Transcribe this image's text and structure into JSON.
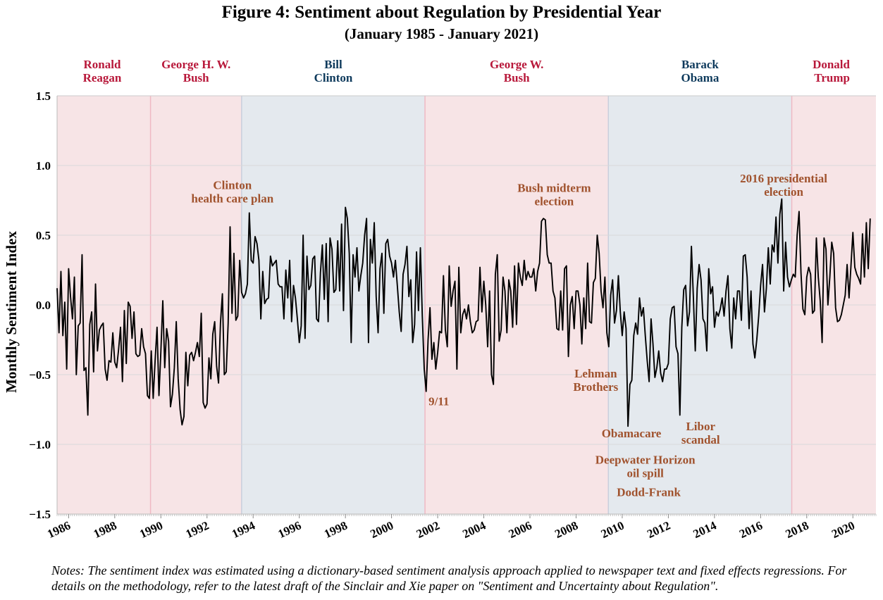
{
  "title": "Figure 4: Sentiment about Regulation by Presidential Year",
  "subtitle": "(January 1985 - January 2021)",
  "note": "Notes: The sentiment index was estimated using a dictionary-based sentiment analysis approach applied to newspaper text and fixed effects regressions. For details on the methodology, refer to the latest draft of the Sinclair and Xie paper on \"Sentiment and Uncertainty about Regulation\".",
  "colors": {
    "republican_band": "#f7e4e6",
    "democrat_band": "#e4e9ee",
    "republican_text": "#b8183a",
    "democrat_text": "#0e3a5c",
    "event_text": "#a0522d",
    "line": "#000000",
    "grid": "#d9d9d9"
  },
  "chart_data": {
    "type": "line",
    "xlabel": "",
    "ylabel": "Monthly Sentiment Index",
    "xlim": [
      1985.5,
      2021.0
    ],
    "ylim": [
      -1.5,
      1.5
    ],
    "yticks": [
      1.5,
      1.0,
      0.5,
      0.0,
      -0.5,
      -1.0,
      -1.5
    ],
    "ytick_labels": [
      "1.5",
      "1.0",
      "0.5",
      "0.0",
      "−0.5",
      "−1.0",
      "−1.5"
    ],
    "xticks": [
      1986,
      1988,
      1990,
      1992,
      1994,
      1996,
      1998,
      2000,
      2002,
      2004,
      2006,
      2008,
      2010,
      2012,
      2014,
      2016,
      2018,
      2020
    ],
    "xtick_labels": [
      "1986",
      "1988",
      "1990",
      "1992",
      "1994",
      "1996",
      "1998",
      "2000",
      "2002",
      "2004",
      "2006",
      "2008",
      "2010",
      "2012",
      "2014",
      "2016",
      "2018",
      "2020"
    ],
    "grid": true,
    "presidents": [
      {
        "name": "Ronald\nReagan",
        "start": 1985.5,
        "end": 1989.55,
        "party": "R"
      },
      {
        "name": "George H. W.\nBush",
        "start": 1989.55,
        "end": 1993.5,
        "party": "R"
      },
      {
        "name": "Bill\nClinton",
        "start": 1993.5,
        "end": 2001.45,
        "party": "D"
      },
      {
        "name": "George W.\nBush",
        "start": 2001.45,
        "end": 2009.4,
        "party": "R"
      },
      {
        "name": "Barack\nObama",
        "start": 2009.4,
        "end": 2017.35,
        "party": "D"
      },
      {
        "name": "Donald\nTrump",
        "start": 2017.35,
        "end": 2021.0,
        "party": "R"
      }
    ],
    "annotations": [
      {
        "text": "Clinton\nhealth care plan",
        "x": 1993.1,
        "y": 0.83
      },
      {
        "text": "Bush midterm\nelection",
        "x": 2007.05,
        "y": 0.81
      },
      {
        "text": "2016 presidential\nelection",
        "x": 2017.0,
        "y": 0.88
      },
      {
        "text": "9/11",
        "x": 2002.05,
        "y": -0.72
      },
      {
        "text": "Lehman\nBrothers",
        "x": 2008.85,
        "y": -0.52
      },
      {
        "text": "Obamacare",
        "x": 2010.4,
        "y": -0.95
      },
      {
        "text": "Libor\nscandal",
        "x": 2013.4,
        "y": -0.9
      },
      {
        "text": "Deepwater Horizon\noil spill",
        "x": 2011.0,
        "y": -1.14
      },
      {
        "text": "Dodd-Frank",
        "x": 2011.15,
        "y": -1.37
      }
    ],
    "series": [
      {
        "x_start": 1985.5,
        "x_step": 0.0833333,
        "values": [
          0.12,
          -0.2,
          0.24,
          -0.22,
          0.02,
          -0.46,
          0.26,
          0.06,
          -0.1,
          0.2,
          -0.5,
          -0.15,
          -0.13,
          0.36,
          -0.47,
          -0.45,
          -0.79,
          -0.14,
          -0.05,
          -0.48,
          0.15,
          -0.33,
          -0.18,
          -0.15,
          -0.13,
          -0.46,
          -0.54,
          -0.4,
          -0.41,
          -0.2,
          -0.41,
          -0.45,
          -0.32,
          -0.16,
          -0.55,
          -0.04,
          -0.42,
          0.02,
          -0.01,
          -0.24,
          -0.05,
          -0.35,
          -0.37,
          -0.36,
          -0.17,
          -0.3,
          -0.35,
          -0.65,
          -0.67,
          -0.33,
          -0.67,
          -0.4,
          -0.16,
          -0.65,
          -0.33,
          0.03,
          -0.45,
          -0.17,
          -0.26,
          -0.73,
          -0.64,
          -0.45,
          -0.12,
          -0.53,
          -0.75,
          -0.86,
          -0.8,
          -0.34,
          -0.58,
          -0.36,
          -0.34,
          -0.4,
          -0.34,
          -0.27,
          -0.37,
          -0.06,
          -0.7,
          -0.74,
          -0.71,
          -0.38,
          -0.53,
          -0.21,
          -0.12,
          -0.44,
          -0.56,
          -0.13,
          0.08,
          -0.5,
          -0.48,
          -0.13,
          0.56,
          -0.06,
          0.37,
          -0.11,
          -0.08,
          0.32,
          0.09,
          0.05,
          0.08,
          0.15,
          0.66,
          0.32,
          0.3,
          0.49,
          0.44,
          0.32,
          -0.1,
          0.24,
          0.01,
          0.04,
          0.05,
          0.35,
          0.28,
          0.3,
          0.32,
          0.15,
          0.13,
          0.13,
          -0.1,
          0.25,
          0.05,
          0.32,
          -0.12,
          0.14,
          0.05,
          -0.1,
          -0.27,
          -0.15,
          0.5,
          -0.24,
          0.35,
          0.11,
          0.14,
          0.33,
          0.35,
          -0.1,
          -0.12,
          0.23,
          0.43,
          0.04,
          0.44,
          -0.12,
          0.48,
          0.4,
          0.09,
          0.11,
          0.46,
          0.1,
          0.58,
          -0.04,
          0.7,
          0.62,
          0.37,
          -0.27,
          0.36,
          0.2,
          0.41,
          0.1,
          0.21,
          0.3,
          0.5,
          0.62,
          -0.27,
          0.47,
          0.3,
          0.59,
          0.06,
          -0.2,
          0.26,
          0.37,
          -0.06,
          0.44,
          0.47,
          0.35,
          0.3,
          0.2,
          0.32,
          0.14,
          -0.05,
          -0.19,
          0.22,
          0.29,
          0.42,
          0.06,
          0.18,
          -0.27,
          -0.14,
          0.38,
          -0.04,
          0.41,
          -0.08,
          -0.46,
          -0.62,
          -0.25,
          -0.02,
          -0.39,
          -0.27,
          -0.46,
          -0.34,
          -0.19,
          -0.2,
          0.21,
          -0.18,
          -0.3,
          0.28,
          -0.01,
          0.1,
          0.17,
          -0.46,
          0.27,
          -0.2,
          -0.07,
          -0.03,
          -0.1,
          0.0,
          -0.12,
          -0.2,
          -0.18,
          -0.12,
          -0.11,
          0.27,
          -0.05,
          0.17,
          0.0,
          -0.3,
          0.1,
          -0.5,
          -0.57,
          0.22,
          0.36,
          -0.26,
          -0.18,
          0.2,
          0.1,
          -0.2,
          0.18,
          0.1,
          -0.16,
          0.28,
          -0.14,
          0.3,
          0.2,
          0.14,
          0.32,
          0.18,
          0.24,
          0.2,
          0.2,
          0.26,
          0.1,
          0.24,
          0.3,
          0.6,
          0.62,
          0.61,
          0.36,
          0.3,
          0.3,
          0.1,
          0.05,
          -0.17,
          -0.18,
          0.1,
          -0.18,
          0.26,
          0.28,
          -0.37,
          0.0,
          0.06,
          -0.17,
          0.1,
          0.1,
          0.0,
          -0.28,
          0.05,
          -0.17,
          0.3,
          -0.12,
          -0.13,
          0.16,
          0.19,
          0.5,
          0.37,
          0.1,
          -0.02,
          0.2,
          -0.2,
          -0.3,
          0.07,
          0.18,
          -0.13,
          -0.04,
          0.21,
          -0.05,
          -0.22,
          -0.05,
          -0.17,
          -0.87,
          -0.57,
          -0.54,
          -0.22,
          -0.13,
          -0.21,
          0.05,
          -0.08,
          -0.02,
          -0.22,
          -0.4,
          -0.55,
          -0.1,
          -0.28,
          -0.52,
          -0.45,
          -0.33,
          -0.49,
          -0.55,
          -0.46,
          -0.46,
          -0.42,
          -0.1,
          -0.02,
          -0.01,
          -0.3,
          -0.35,
          -0.79,
          -0.16,
          0.11,
          0.14,
          -0.15,
          -0.05,
          0.42,
          0.06,
          -0.33,
          0.12,
          0.29,
          0.18,
          -0.1,
          -0.13,
          -0.33,
          0.26,
          0.08,
          0.13,
          -0.16,
          -0.05,
          -0.08,
          -0.03,
          0.05,
          -0.08,
          0.1,
          0.21,
          -0.17,
          -0.31,
          0.05,
          -0.1,
          0.1,
          0.1,
          -0.11,
          0.35,
          0.36,
          0.2,
          -0.17,
          0.1,
          -0.28,
          -0.38,
          -0.25,
          -0.08,
          0.14,
          0.29,
          -0.05,
          0.12,
          0.41,
          0.15,
          0.43,
          0.38,
          0.63,
          0.3,
          0.65,
          0.76,
          0.1,
          0.45,
          0.2,
          0.13,
          0.18,
          0.22,
          0.2,
          0.5,
          0.67,
          0.23,
          -0.03,
          -0.07,
          0.2,
          0.27,
          0.22,
          -0.06,
          -0.04,
          0.48,
          0.2,
          0.03,
          -0.27,
          0.48,
          0.4,
          0.0,
          0.2,
          0.45,
          0.37,
          -0.02,
          -0.12,
          -0.11,
          -0.07,
          0.0,
          0.07,
          0.29,
          0.05,
          0.28,
          0.52,
          0.27,
          0.22,
          0.19,
          0.15,
          0.51,
          0.2,
          0.59,
          0.26,
          0.62
        ]
      }
    ]
  }
}
